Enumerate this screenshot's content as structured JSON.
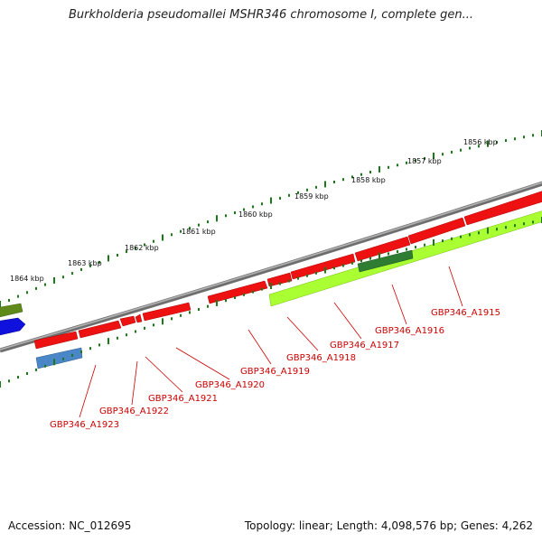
{
  "title": "Burkholderia pseudomallei MSHR346 chromosome I, complete gen...",
  "footer": {
    "accession": "Accession: NC_012695",
    "summary": "Topology: linear; Length: 4,098,576 bp; Genes: 4,262"
  },
  "colors": {
    "backbone": "#7a7a7a",
    "gene_red": "#ee1111",
    "gene_lime": "#aaff33",
    "gene_darkgreen": "#2e7d32",
    "gene_blue": "#4a86c8",
    "gene_royal": "#1111dd",
    "gene_olive": "#5f8a1a",
    "tick": "#1a7a1a",
    "label": "#cc0000"
  },
  "scale": {
    "tick_labels": [
      "1864 kbp",
      "1863 kbp",
      "1862 kbp",
      "1861 kbp",
      "1860 kbp",
      "1859 kbp",
      "1858 kbp",
      "1857 kbp",
      "1856 kbp"
    ]
  },
  "gene_labels": [
    "GBP346_A1923",
    "GBP346_A1922",
    "GBP346_A1921",
    "GBP346_A1920",
    "GBP346_A1919",
    "GBP346_A1918",
    "GBP346_A1917",
    "GBP346_A1916",
    "GBP346_A1915"
  ]
}
